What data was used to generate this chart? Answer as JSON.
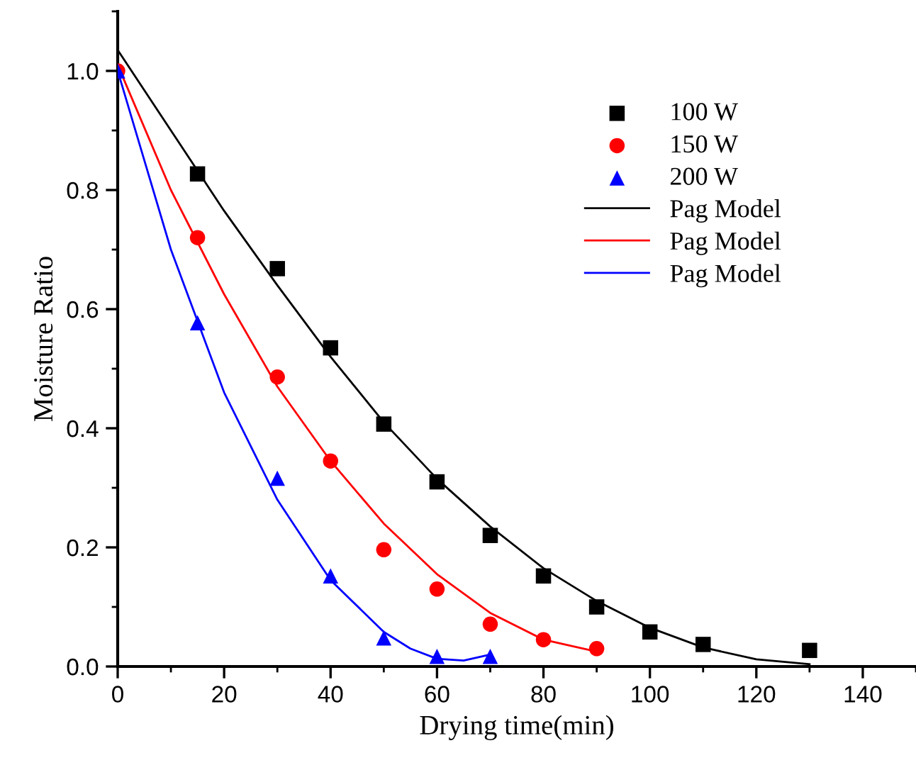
{
  "chart_data": {
    "type": "scatter",
    "xlabel": "Drying time(min)",
    "ylabel": "Moisture Ratio",
    "xlim": [
      0,
      150
    ],
    "ylim": [
      0,
      1.1
    ],
    "xticks": [
      0,
      20,
      40,
      60,
      80,
      100,
      120,
      140
    ],
    "yticks": [
      {
        "value": 0,
        "label": "0.0"
      },
      {
        "value": 0.2,
        "label": "0.2"
      },
      {
        "value": 0.4,
        "label": "0.4"
      },
      {
        "value": 0.6,
        "label": "0.6"
      },
      {
        "value": 0.8,
        "label": "0.8"
      },
      {
        "value": 1,
        "label": "1.0"
      }
    ],
    "grid": false,
    "legend": "right",
    "series": [
      {
        "name": "100 W",
        "marker": "square",
        "color": "#000000",
        "x": [
          15,
          30,
          40,
          50,
          60,
          70,
          80,
          90,
          100,
          110,
          130
        ],
        "values": [
          0.827,
          0.668,
          0.535,
          0.407,
          0.31,
          0.22,
          0.152,
          0.1,
          0.058,
          0.037,
          0.027
        ]
      },
      {
        "name": "150 W",
        "marker": "circle",
        "color": "#ff0000",
        "x": [
          0,
          15,
          30,
          40,
          50,
          60,
          70,
          80,
          90
        ],
        "values": [
          1.0,
          0.72,
          0.486,
          0.345,
          0.196,
          0.13,
          0.071,
          0.045,
          0.03
        ]
      },
      {
        "name": "200 W",
        "marker": "triangle",
        "color": "#0000ff",
        "x": [
          0,
          15,
          30,
          40,
          50,
          60,
          70
        ],
        "values": [
          1.0,
          0.577,
          0.316,
          0.152,
          0.048,
          0.017,
          0.017
        ]
      },
      {
        "name": "Pag Model",
        "type": "line",
        "marker": "none",
        "line_style": "solid",
        "color": "#000000",
        "x": [
          0,
          10,
          20,
          30,
          40,
          50,
          60,
          70,
          80,
          90,
          100,
          110,
          120,
          130
        ],
        "values": [
          1.035,
          0.9,
          0.765,
          0.64,
          0.52,
          0.41,
          0.315,
          0.235,
          0.165,
          0.11,
          0.065,
          0.032,
          0.012,
          0.004
        ]
      },
      {
        "name": "Pag Model",
        "type": "line",
        "marker": "none",
        "line_style": "solid",
        "color": "#ff0000",
        "x": [
          0,
          10,
          20,
          30,
          40,
          50,
          60,
          70,
          80,
          90
        ],
        "values": [
          1.01,
          0.8,
          0.625,
          0.47,
          0.345,
          0.24,
          0.155,
          0.09,
          0.045,
          0.025
        ]
      },
      {
        "name": "Pag Model",
        "type": "line",
        "marker": "none",
        "line_style": "solid",
        "color": "#0000ff",
        "x": [
          0,
          10,
          20,
          30,
          40,
          50,
          55,
          60,
          65,
          70
        ],
        "values": [
          1.0,
          0.7,
          0.46,
          0.28,
          0.145,
          0.058,
          0.03,
          0.013,
          0.01,
          0.02
        ]
      }
    ]
  }
}
